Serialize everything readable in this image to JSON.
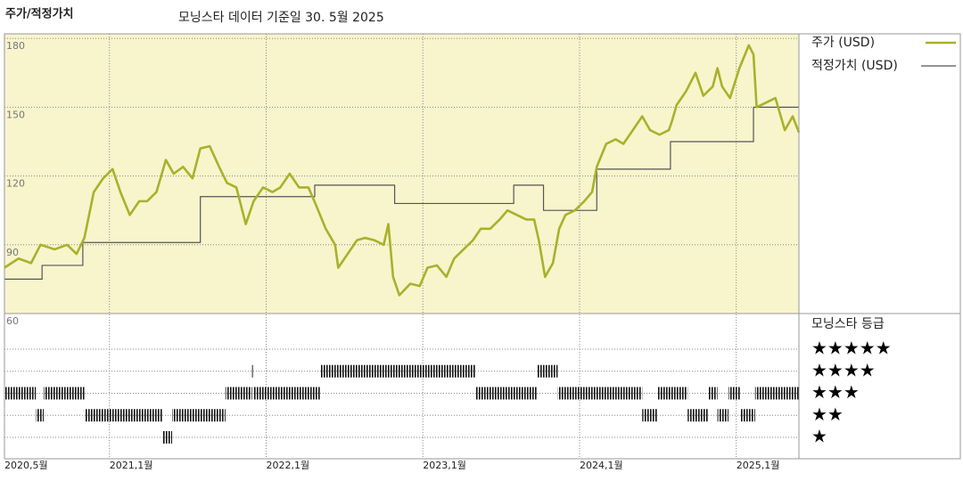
{
  "chart_data": {
    "type": "line",
    "title": "주가/적정가치",
    "subtitle": "모닝스타 데이터 기준일 30. 5월 2025",
    "background": "#f8f4cc",
    "grid": true,
    "xlim": [
      2020.33,
      2025.4
    ],
    "xticks": [
      {
        "value": 2020.33,
        "label": "2020,5월"
      },
      {
        "value": 2021,
        "label": "2021,1월"
      },
      {
        "value": 2022,
        "label": "2022,1월"
      },
      {
        "value": 2023,
        "label": "2023,1월"
      },
      {
        "value": 2024,
        "label": "2024,1월"
      },
      {
        "value": 2025,
        "label": "2025,1월"
      }
    ],
    "ylim": [
      60,
      182
    ],
    "yticks": [
      60,
      90,
      120,
      150,
      180
    ],
    "series": [
      {
        "name": "주가 (USD)",
        "color": "#a9b12b",
        "x": [
          2020.33,
          2020.42,
          2020.5,
          2020.56,
          2020.65,
          2020.73,
          2020.79,
          2020.84,
          2020.9,
          2020.96,
          2021.02,
          2021.07,
          2021.13,
          2021.19,
          2021.24,
          2021.3,
          2021.36,
          2021.41,
          2021.47,
          2021.53,
          2021.58,
          2021.64,
          2021.7,
          2021.75,
          2021.81,
          2021.87,
          2021.92,
          2021.98,
          2022.04,
          2022.09,
          2022.15,
          2022.21,
          2022.27,
          2022.32,
          2022.38,
          2022.44,
          2022.46,
          2022.52,
          2022.58,
          2022.63,
          2022.69,
          2022.75,
          2022.78,
          2022.81,
          2022.85,
          2022.92,
          2022.98,
          2023.03,
          2023.09,
          2023.15,
          2023.2,
          2023.26,
          2023.32,
          2023.37,
          2023.43,
          2023.49,
          2023.54,
          2023.6,
          2023.66,
          2023.71,
          2023.74,
          2023.78,
          2023.83,
          2023.87,
          2023.91,
          2023.97,
          2024.03,
          2024.08,
          2024.11,
          2024.17,
          2024.23,
          2024.28,
          2024.34,
          2024.4,
          2024.45,
          2024.51,
          2024.57,
          2024.59,
          2024.62,
          2024.68,
          2024.74,
          2024.79,
          2024.85,
          2024.88,
          2024.91,
          2024.96,
          2025.02,
          2025.08,
          2025.11,
          2025.13,
          2025.19,
          2025.25,
          2025.31,
          2025.36,
          2025.4
        ],
        "values": [
          80,
          84,
          82,
          90,
          88,
          90,
          86,
          93,
          113,
          119,
          123,
          113,
          103,
          109,
          109,
          113,
          127,
          121,
          124,
          119,
          132,
          133,
          124,
          117,
          115,
          99,
          109,
          115,
          113,
          115,
          121,
          115,
          115,
          107,
          97,
          90,
          80,
          86,
          92,
          93,
          92,
          90,
          99,
          76,
          68,
          73,
          72,
          80,
          81,
          76,
          84,
          88,
          92,
          97,
          97,
          101,
          105,
          103,
          101,
          101,
          92,
          76,
          82,
          97,
          103,
          105,
          109,
          113,
          124,
          134,
          136,
          134,
          140,
          146,
          140,
          138,
          140,
          144,
          151,
          157,
          165,
          155,
          159,
          167,
          159,
          154,
          167,
          177,
          173,
          150,
          152,
          154,
          140,
          146,
          139
        ]
      },
      {
        "name": "적정가치 (USD)",
        "color": "#555555",
        "step": true,
        "x": [
          2020.33,
          2020.57,
          2020.83,
          2021.58,
          2022.31,
          2022.82,
          2023.58,
          2023.77,
          2024.11,
          2024.58,
          2025.11
        ],
        "values": [
          75,
          81,
          91,
          111,
          116,
          108,
          116,
          105,
          123,
          135,
          150
        ]
      }
    ],
    "rating": {
      "title": "모닝스타 등급",
      "levels": [
        5,
        4,
        3,
        2,
        1
      ],
      "level_labels": [
        "★★★★★",
        "★★★★",
        "★★★",
        "★★",
        "★"
      ],
      "color": "#111111",
      "x": [
        2020.33,
        2020.53,
        2020.58,
        2020.84,
        2021.34,
        2021.4,
        2021.74,
        2021.91,
        2021.92,
        2022.35,
        2023.34,
        2023.73,
        2023.86,
        2024.4,
        2024.5,
        2024.69,
        2024.82,
        2024.88,
        2024.95,
        2025.03,
        2025.12
      ],
      "values": [
        3,
        2,
        3,
        2,
        1,
        2,
        3,
        4,
        3,
        4,
        3,
        4,
        3,
        2,
        3,
        2,
        3,
        2,
        3,
        2,
        3
      ]
    }
  }
}
